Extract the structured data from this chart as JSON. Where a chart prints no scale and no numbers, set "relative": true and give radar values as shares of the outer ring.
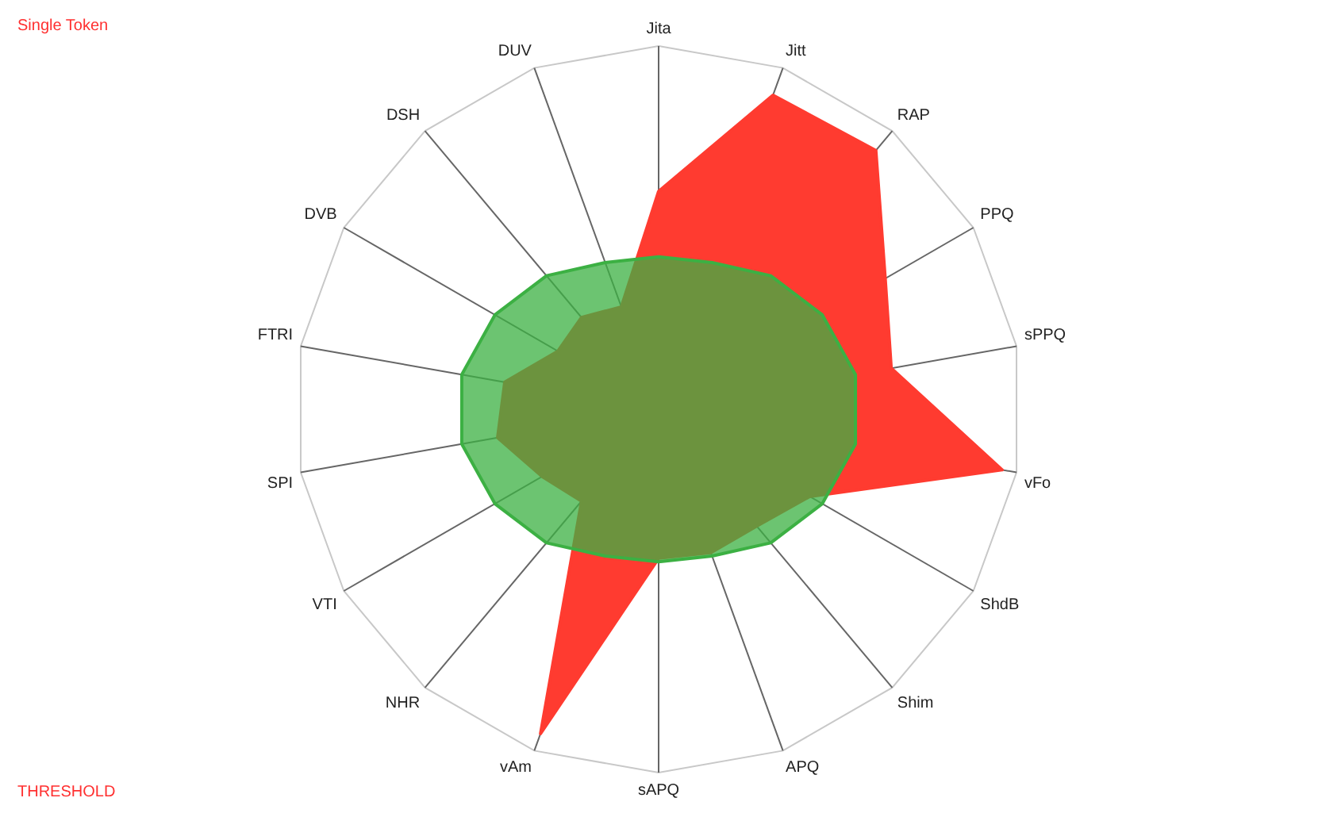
{
  "chart_data": {
    "type": "radar",
    "relative": true,
    "legend": false,
    "grid": false,
    "categories": [
      "Jita",
      "Jitt",
      "RAP",
      "PPQ",
      "sPPQ",
      "vFo",
      "ShdB",
      "Shim",
      "APQ",
      "sAPQ",
      "vAm",
      "NHR",
      "VTI",
      "SPI",
      "FTRI",
      "DVB",
      "DSH",
      "DUV"
    ],
    "series": [
      {
        "color": "#ff3b30",
        "values": [
          0.6,
          0.92,
          0.93,
          0.72,
          0.65,
          0.96,
          0.48,
          0.42,
          0.42,
          0.41,
          0.95,
          0.33,
          0.37,
          0.45,
          0.43,
          0.32,
          0.33,
          0.3
        ]
      },
      {
        "color": "#3cb043",
        "values": [
          0.42,
          0.43,
          0.48,
          0.52,
          0.55,
          0.55,
          0.52,
          0.48,
          0.43,
          0.42,
          0.43,
          0.48,
          0.52,
          0.55,
          0.55,
          0.52,
          0.48,
          0.43
        ]
      }
    ],
    "annotations": [
      "Single Token",
      "THRESHOLD"
    ]
  }
}
